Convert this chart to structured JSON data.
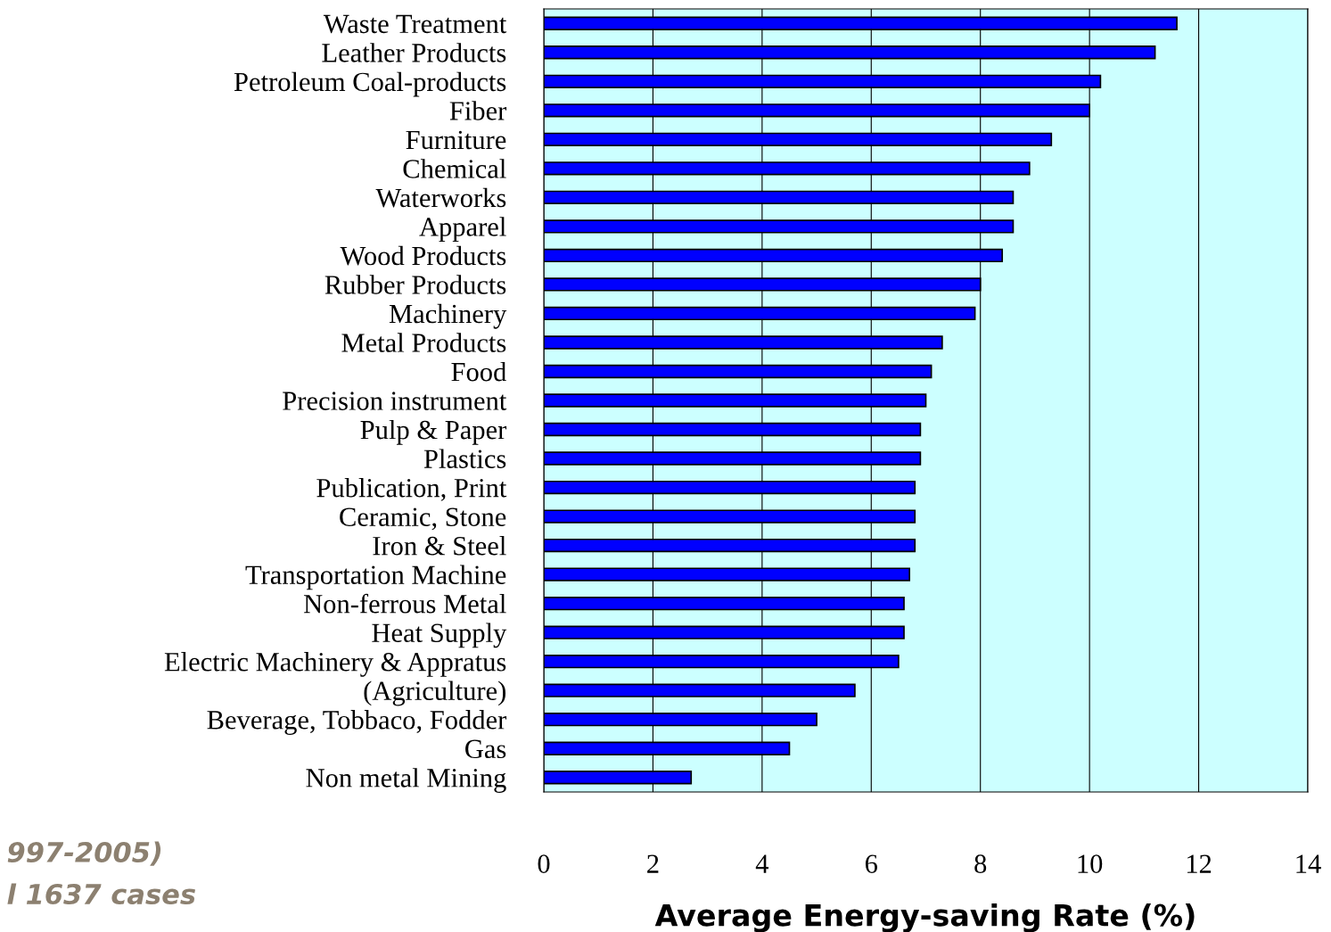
{
  "chart_data": {
    "type": "bar",
    "orientation": "horizontal",
    "xlabel": "Average Energy-saving Rate (%)",
    "categories": [
      "Waste Treatment",
      "Leather Products",
      "Petroleum Coal-products",
      "Fiber",
      "Furniture",
      "Chemical",
      "Waterworks",
      "Apparel",
      "Wood Products",
      "Rubber Products",
      "Machinery",
      "Metal Products",
      "Food",
      "Precision instrument",
      "Pulp & Paper",
      "Plastics",
      "Publication, Print",
      "Ceramic, Stone",
      "Iron & Steel",
      "Transportation Machine",
      "Non-ferrous Metal",
      "Heat Supply",
      "Electric Machinery & Appratus",
      "(Agriculture)",
      "Beverage, Tobbaco, Fodder",
      "Gas",
      "Non metal Mining"
    ],
    "values": [
      11.6,
      11.2,
      10.2,
      10.0,
      9.3,
      8.9,
      8.6,
      8.6,
      8.4,
      8.0,
      7.9,
      7.3,
      7.1,
      7.0,
      6.9,
      6.9,
      6.8,
      6.8,
      6.8,
      6.7,
      6.6,
      6.6,
      6.5,
      5.7,
      5.0,
      4.5,
      2.7
    ],
    "color": "#0000ff",
    "xlim": [
      0,
      14
    ],
    "xticks": [
      0,
      2,
      4,
      6,
      8,
      10,
      12,
      14
    ],
    "grid": "x",
    "annotations": [
      "997-2005)",
      "l 1637 cases"
    ]
  }
}
